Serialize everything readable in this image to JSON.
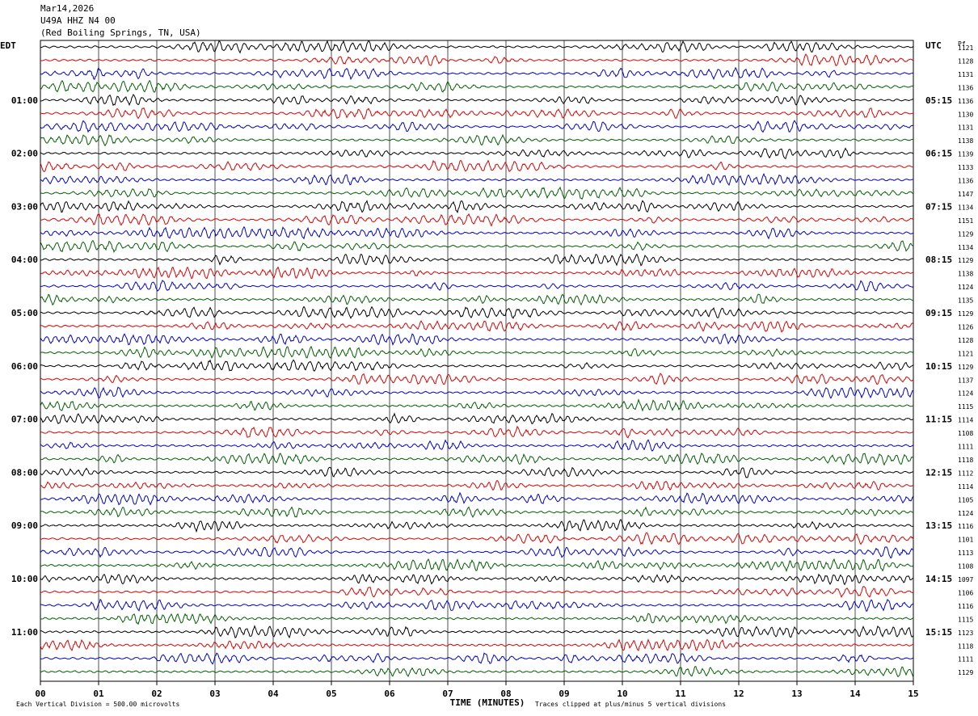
{
  "header": {
    "date": "Mar14,2026",
    "station": "U49A HHZ N4 00",
    "location": "(Red Boiling Springs, TN, USA)"
  },
  "left_zone": "EDT",
  "right_zone": "UTC",
  "rms_label": "Pf",
  "chart_data": {
    "type": "helicorder",
    "x_axis_title": "TIME (MINUTES)",
    "x_ticks": [
      "00",
      "01",
      "02",
      "03",
      "04",
      "05",
      "06",
      "07",
      "08",
      "09",
      "10",
      "11",
      "12",
      "13",
      "14",
      "15"
    ],
    "xlim": [
      0,
      15
    ],
    "left_hour_labels": [
      "01:00",
      "02:00",
      "03:00",
      "04:00",
      "05:00",
      "06:00",
      "07:00",
      "08:00",
      "09:00",
      "10:00",
      "11:00"
    ],
    "right_hour_labels": [
      "05:15",
      "06:15",
      "07:15",
      "08:15",
      "09:15",
      "10:15",
      "11:15",
      "12:15",
      "13:15",
      "14:15",
      "15:15"
    ],
    "trace_colors": [
      "#000000",
      "#e00000",
      "#0000d0",
      "#006000"
    ],
    "rms_values": [
      "1121",
      "1128",
      "1131",
      "1136",
      "1136",
      "1130",
      "1131",
      "1138",
      "1139",
      "1133",
      "1136",
      "1147",
      "1134",
      "1151",
      "1129",
      "1134",
      "1129",
      "1138",
      "1124",
      "1135",
      "1129",
      "1126",
      "1128",
      "1121",
      "1129",
      "1137",
      "1124",
      "1115",
      "1114",
      "1108",
      "1111",
      "1118",
      "1112",
      "1114",
      "1105",
      "1124",
      "1116",
      "1101",
      "1113",
      "1108",
      "1097",
      "1106",
      "1116",
      "1115",
      "1123",
      "1118",
      "1111",
      "1129"
    ],
    "grid": true
  },
  "footer": {
    "scale_note": "Each Vertical Division =  500.00 microvolts",
    "clip_note": "Traces clipped at plus/minus 5 vertical divisions"
  }
}
